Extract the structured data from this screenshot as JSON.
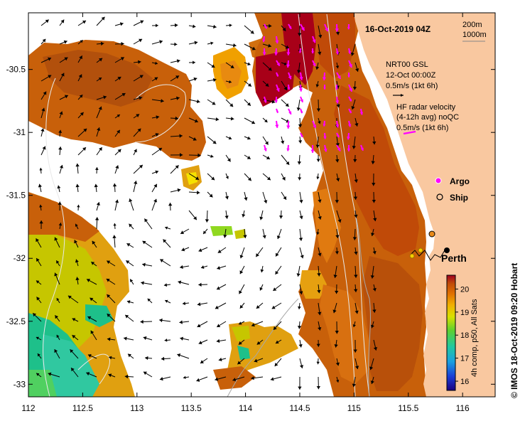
{
  "map": {
    "title": "16-Oct-2019 04Z",
    "scale_labels": [
      "200m",
      "1000m"
    ],
    "x_ticks": [
      "112",
      "112.5",
      "113",
      "113.5",
      "114",
      "114.5",
      "115",
      "115.5",
      "116"
    ],
    "y_ticks": [
      "-30.5",
      "-31",
      "-31.5",
      "-32",
      "-32.5",
      "-33"
    ],
    "x_range": [
      112,
      116.3
    ],
    "y_range": [
      -33.1,
      -30.05
    ],
    "colors": {
      "land": "#f9c8a0",
      "no_data": "#ffffff",
      "argo": "#ff00ff",
      "ship": "#000000",
      "glider": "#e88a1a"
    }
  },
  "legend": {
    "model_title": "NRT00 GSL",
    "model_time": "12-Oct 00:00Z",
    "model_scale": "0.5m/s (1kt 6h)",
    "radar_title": "HF radar velocity",
    "radar_sub": "(4-12h avg) noQC",
    "radar_scale": "0.5m/s (1kt 6h)",
    "argo": "Argo",
    "ship": "Ship"
  },
  "place": {
    "city": "Perth"
  },
  "colorbar": {
    "ticks": [
      "20",
      "19",
      "18",
      "17",
      "16"
    ],
    "range": [
      15.6,
      20.6
    ],
    "label": "4h comp, p50, All Sats"
  },
  "credit": "© IMOS 18-Oct-2019 09:20 Hobart"
}
